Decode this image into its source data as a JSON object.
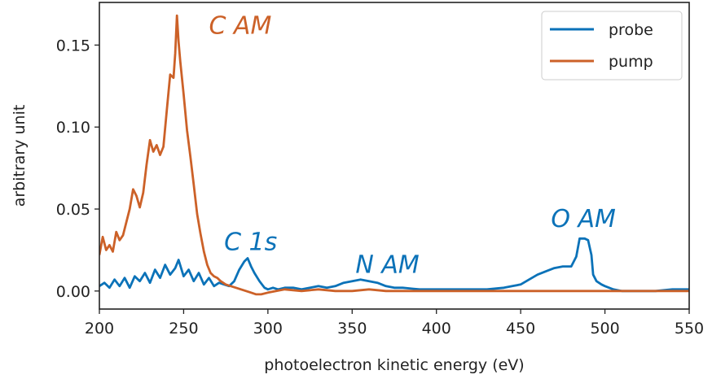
{
  "colors": {
    "probe": "#0b72b8",
    "pump": "#cc6128",
    "axis": "#222222",
    "legend_border": "#cccccc"
  },
  "chart_data": {
    "type": "line",
    "xlabel": "photoelectron kinetic energy (eV)",
    "ylabel": "arbitrary unit",
    "xlim": [
      200,
      550
    ],
    "ylim": [
      -0.011,
      0.176
    ],
    "xticks": [
      200,
      250,
      300,
      350,
      400,
      450,
      500,
      550
    ],
    "xtick_labels": [
      "200",
      "250",
      "300",
      "350",
      "400",
      "450",
      "500",
      "550"
    ],
    "yticks": [
      0.0,
      0.05,
      0.1,
      0.15
    ],
    "ytick_labels": [
      "0.00",
      "0.05",
      "0.10",
      "0.15"
    ],
    "grid": false,
    "legend_position": "top-right",
    "series": [
      {
        "name": "probe",
        "color": "#0b72b8",
        "x": [
          200,
          203,
          206,
          209,
          212,
          215,
          218,
          221,
          224,
          227,
          230,
          233,
          236,
          239,
          242,
          245,
          247,
          250,
          253,
          256,
          259,
          262,
          265,
          268,
          271,
          274,
          277,
          280,
          283,
          286,
          288,
          290,
          292,
          295,
          298,
          300,
          303,
          306,
          310,
          315,
          320,
          325,
          330,
          335,
          340,
          345,
          350,
          355,
          360,
          365,
          370,
          375,
          380,
          390,
          400,
          410,
          420,
          430,
          440,
          445,
          450,
          455,
          460,
          465,
          470,
          475,
          480,
          483,
          485,
          488,
          490,
          492,
          493,
          495,
          498,
          500,
          505,
          510,
          520,
          530,
          540,
          550
        ],
        "y": [
          0.003,
          0.005,
          0.002,
          0.007,
          0.003,
          0.008,
          0.002,
          0.009,
          0.006,
          0.011,
          0.005,
          0.013,
          0.008,
          0.016,
          0.01,
          0.014,
          0.019,
          0.009,
          0.013,
          0.006,
          0.011,
          0.004,
          0.008,
          0.003,
          0.005,
          0.004,
          0.003,
          0.006,
          0.013,
          0.018,
          0.02,
          0.015,
          0.011,
          0.006,
          0.002,
          0.001,
          0.002,
          0.001,
          0.002,
          0.002,
          0.001,
          0.002,
          0.003,
          0.002,
          0.003,
          0.005,
          0.006,
          0.007,
          0.006,
          0.005,
          0.003,
          0.002,
          0.002,
          0.001,
          0.001,
          0.001,
          0.001,
          0.001,
          0.002,
          0.003,
          0.004,
          0.007,
          0.01,
          0.012,
          0.014,
          0.015,
          0.015,
          0.021,
          0.032,
          0.032,
          0.031,
          0.022,
          0.01,
          0.006,
          0.004,
          0.003,
          0.001,
          0.0,
          0.0,
          0.0,
          0.001,
          0.001
        ]
      },
      {
        "name": "pump",
        "color": "#cc6128",
        "x": [
          200,
          202,
          204,
          206,
          208,
          210,
          212,
          214,
          216,
          218,
          220,
          222,
          224,
          226,
          228,
          230,
          232,
          234,
          236,
          238,
          240,
          242,
          244,
          245,
          246,
          247,
          248,
          250,
          252,
          254,
          256,
          258,
          260,
          262,
          264,
          266,
          268,
          270,
          272,
          275,
          278,
          281,
          284,
          287,
          290,
          293,
          296,
          300,
          305,
          310,
          320,
          330,
          340,
          350,
          360,
          370,
          380,
          390,
          400,
          420,
          440,
          460,
          480,
          500,
          520,
          540,
          550
        ],
        "y": [
          0.022,
          0.033,
          0.025,
          0.028,
          0.024,
          0.036,
          0.031,
          0.034,
          0.042,
          0.05,
          0.062,
          0.058,
          0.051,
          0.06,
          0.077,
          0.092,
          0.085,
          0.089,
          0.083,
          0.088,
          0.11,
          0.132,
          0.13,
          0.145,
          0.168,
          0.152,
          0.14,
          0.12,
          0.098,
          0.082,
          0.065,
          0.047,
          0.035,
          0.024,
          0.016,
          0.011,
          0.009,
          0.008,
          0.006,
          0.004,
          0.003,
          0.002,
          0.001,
          0.0,
          -0.001,
          -0.002,
          -0.002,
          -0.001,
          0.0,
          0.001,
          0.0,
          0.001,
          0.0,
          0.0,
          0.001,
          0.0,
          0.0,
          0.0,
          0.0,
          0.0,
          0.0,
          0.0,
          0.0,
          0.0,
          0.0,
          0.0,
          0.0
        ]
      }
    ],
    "annotations": [
      {
        "text": "C AM",
        "x": 265,
        "y": 0.157,
        "color": "#cc6128"
      },
      {
        "text": "C 1s",
        "x": 274,
        "y": 0.025,
        "color": "#0b72b8"
      },
      {
        "text": "N AM",
        "x": 352,
        "y": 0.011,
        "color": "#0b72b8"
      },
      {
        "text": "O AM",
        "x": 468,
        "y": 0.039,
        "color": "#0b72b8"
      }
    ]
  }
}
